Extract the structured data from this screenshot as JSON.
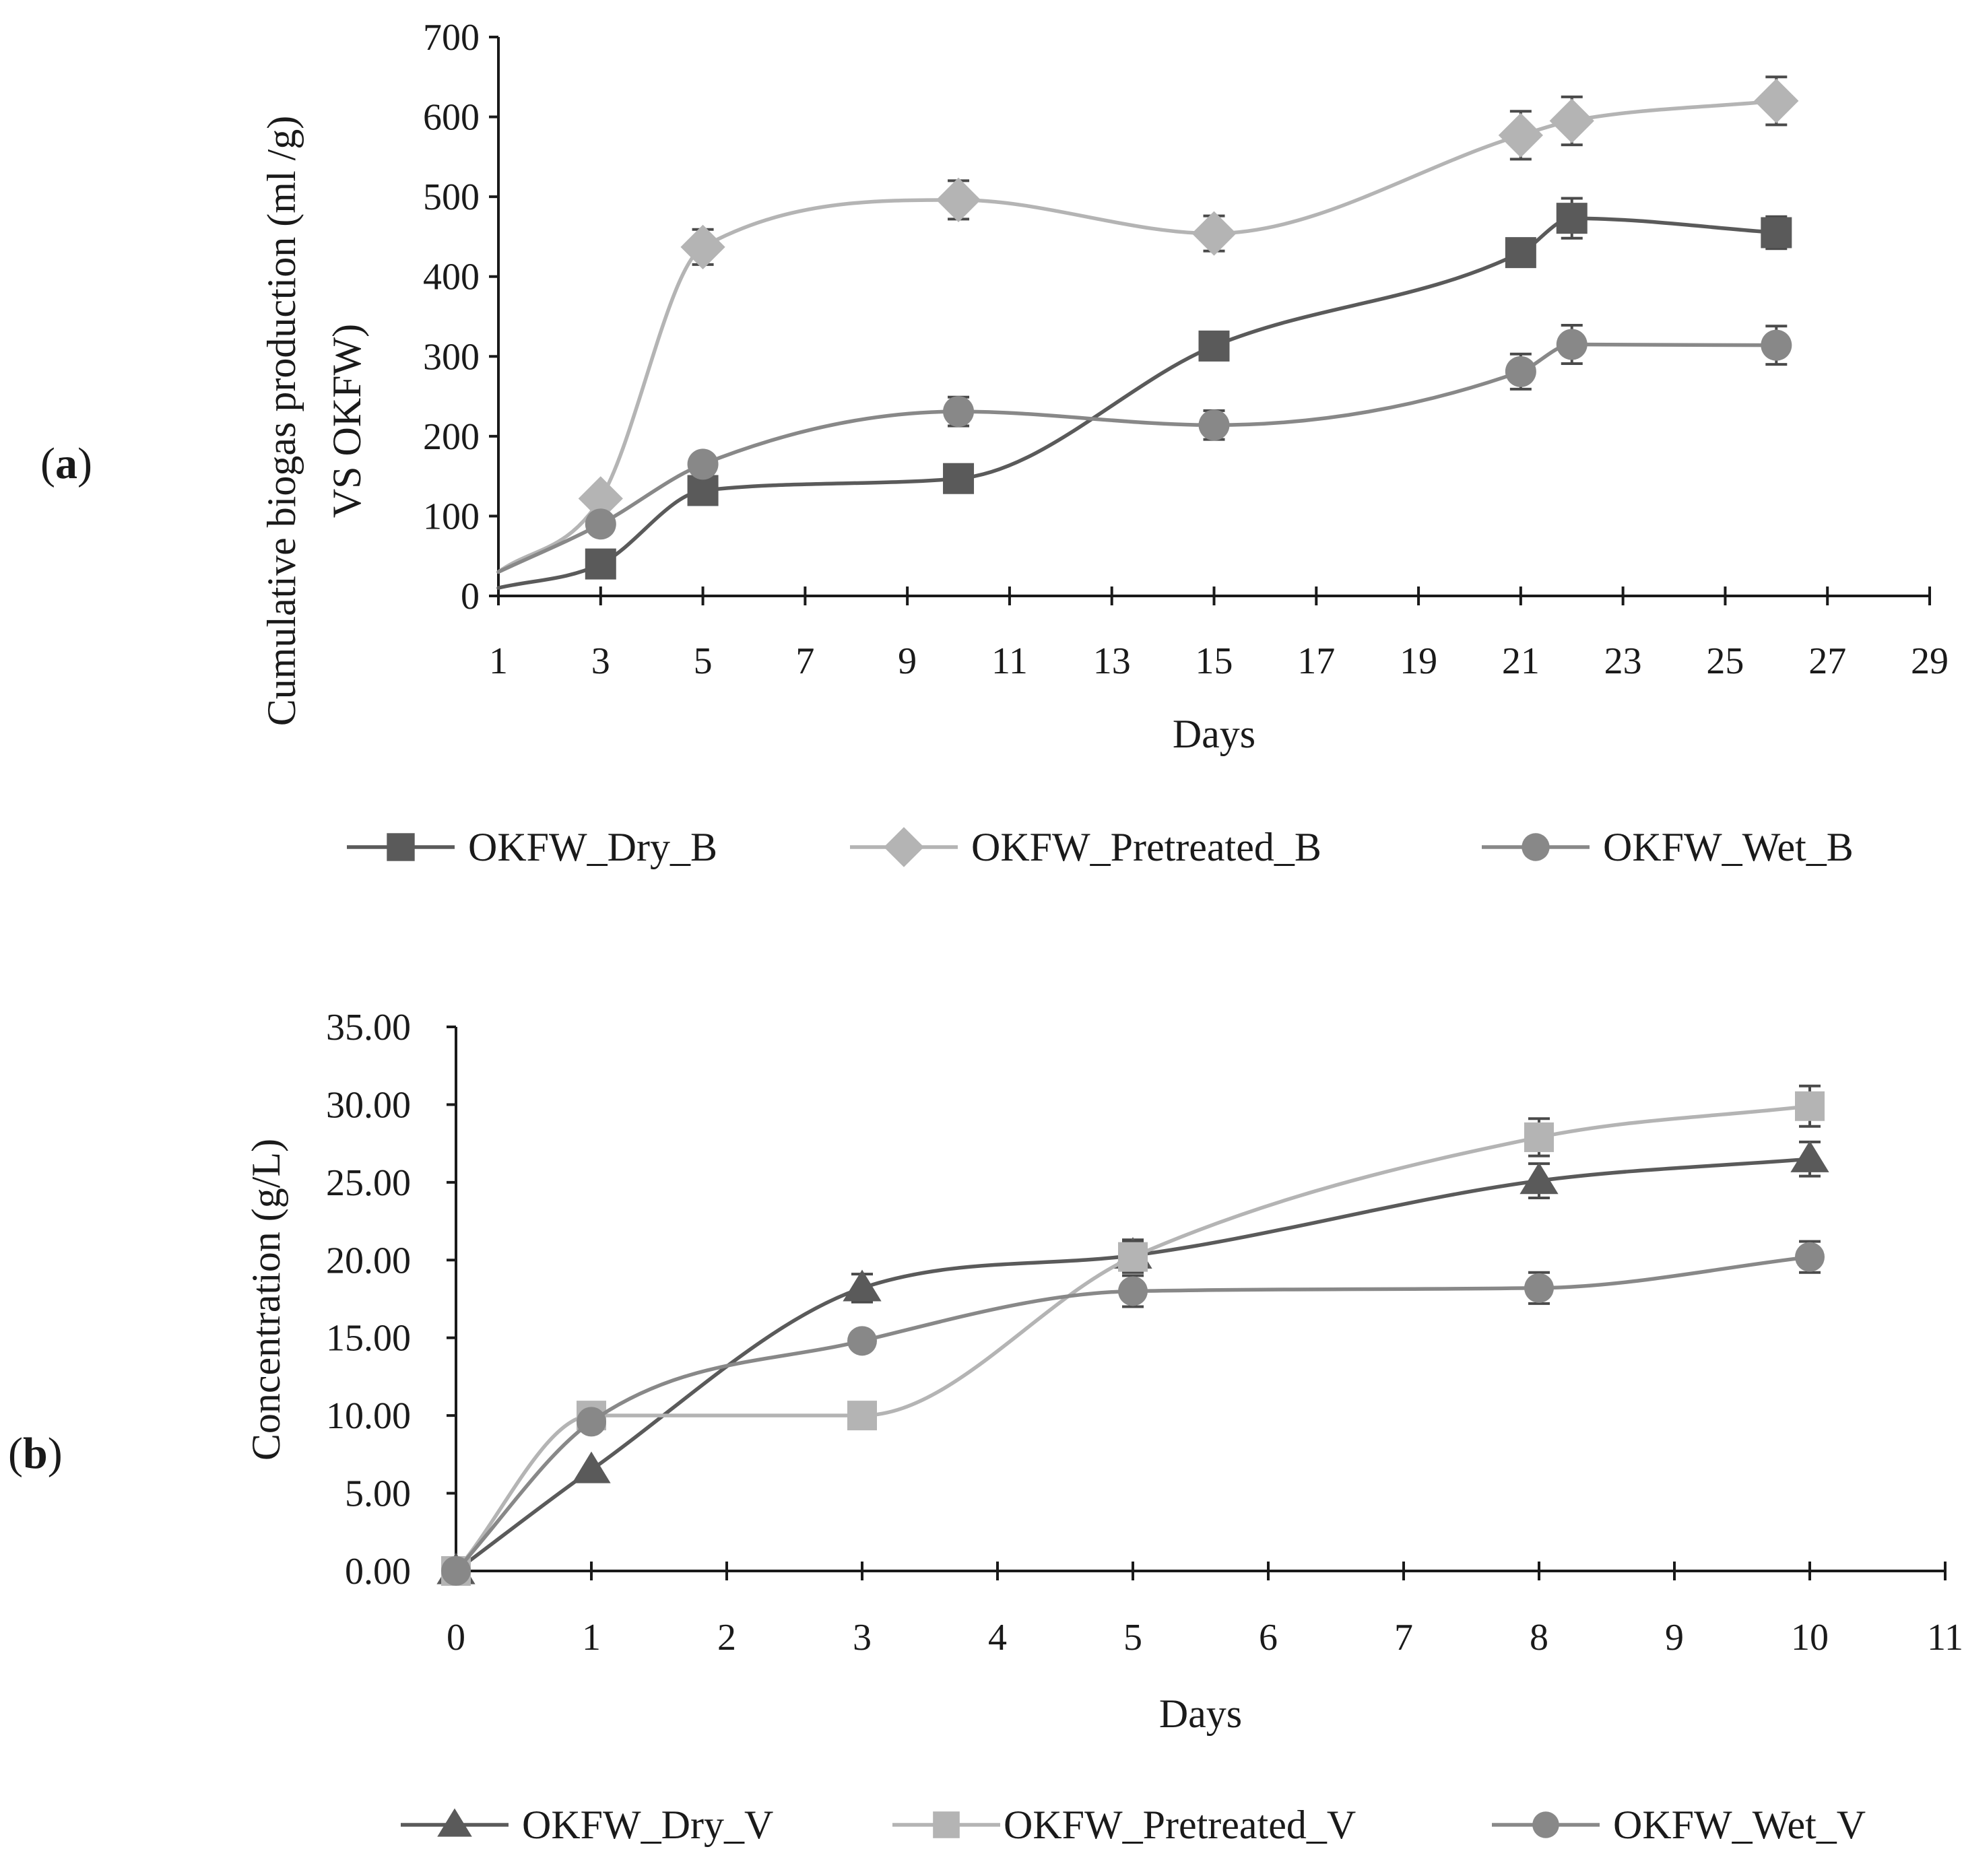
{
  "chart_data": [
    {
      "type": "line",
      "panel_label": "(a)",
      "panel_letter": "a",
      "xlabel": "Days",
      "ylabel_lines": [
        "Cumulative biogas production (ml /g)",
        "VS OKFW)"
      ],
      "xlim": [
        1,
        29
      ],
      "ylim": [
        0,
        700
      ],
      "x_ticks": [
        "1",
        "3",
        "5",
        "7",
        "9",
        "11",
        "13",
        "15",
        "17",
        "19",
        "21",
        "23",
        "25",
        "27",
        "29"
      ],
      "y_ticks": [
        "0",
        "100",
        "200",
        "300",
        "400",
        "500",
        "600",
        "700"
      ],
      "series": [
        {
          "name": "OKFW_Dry_B",
          "color": "#5a5a5a",
          "marker": "square",
          "start": [
            1,
            10
          ],
          "x": [
            3,
            5,
            10,
            15,
            21,
            22,
            26
          ],
          "values": [
            40,
            132,
            147,
            313,
            430,
            473,
            455
          ],
          "errors": [
            0,
            0,
            0,
            0,
            15,
            25,
            20
          ]
        },
        {
          "name": "OKFW_Pretreated_B",
          "color": "#b4b4b4",
          "marker": "diamond",
          "start": [
            1,
            30
          ],
          "x": [
            3,
            5,
            10,
            15,
            21,
            22,
            26
          ],
          "values": [
            122,
            437,
            496,
            454,
            577,
            595,
            620
          ],
          "errors": [
            0,
            22,
            24,
            22,
            30,
            30,
            30
          ]
        },
        {
          "name": "OKFW_Wet_B",
          "color": "#888888",
          "marker": "circle",
          "start": [
            1,
            30
          ],
          "x": [
            3,
            5,
            10,
            15,
            21,
            22,
            26
          ],
          "values": [
            90,
            165,
            231,
            214,
            281,
            315,
            314
          ],
          "errors": [
            0,
            12,
            18,
            18,
            22,
            24,
            24
          ]
        }
      ]
    },
    {
      "type": "line",
      "panel_label": "(b)",
      "panel_letter": "b",
      "xlabel": "Days",
      "ylabel_lines": [
        "Concentration (g/L)"
      ],
      "xlim": [
        0,
        11
      ],
      "ylim": [
        0,
        35
      ],
      "x_ticks": [
        "0",
        "1",
        "2",
        "3",
        "4",
        "5",
        "6",
        "7",
        "8",
        "9",
        "10",
        "11"
      ],
      "y_ticks": [
        "0.00",
        "5.00",
        "10.00",
        "15.00",
        "20.00",
        "25.00",
        "30.00",
        "35.00"
      ],
      "series": [
        {
          "name": "OKFW_Dry_V",
          "color": "#5a5a5a",
          "marker": "triangle",
          "x": [
            0,
            1,
            3,
            5,
            8,
            10
          ],
          "values": [
            0,
            6.5,
            18.2,
            20.3,
            25.1,
            26.5
          ],
          "errors": [
            0,
            0,
            0.9,
            1.0,
            1.1,
            1.1
          ]
        },
        {
          "name": "OKFW_Pretreated_V",
          "color": "#b4b4b4",
          "marker": "square",
          "x": [
            0,
            1,
            3,
            5,
            8,
            10
          ],
          "values": [
            0,
            10.0,
            10.0,
            20.2,
            27.9,
            29.9
          ],
          "errors": [
            0,
            0,
            0,
            1.0,
            1.2,
            1.3
          ]
        },
        {
          "name": "OKFW_Wet_V",
          "color": "#888888",
          "marker": "circle",
          "x": [
            0,
            1,
            3,
            5,
            8,
            10
          ],
          "values": [
            0,
            9.6,
            14.8,
            18.0,
            18.2,
            20.2
          ],
          "errors": [
            0,
            0,
            0,
            1.0,
            1.0,
            1.0
          ]
        }
      ]
    }
  ]
}
